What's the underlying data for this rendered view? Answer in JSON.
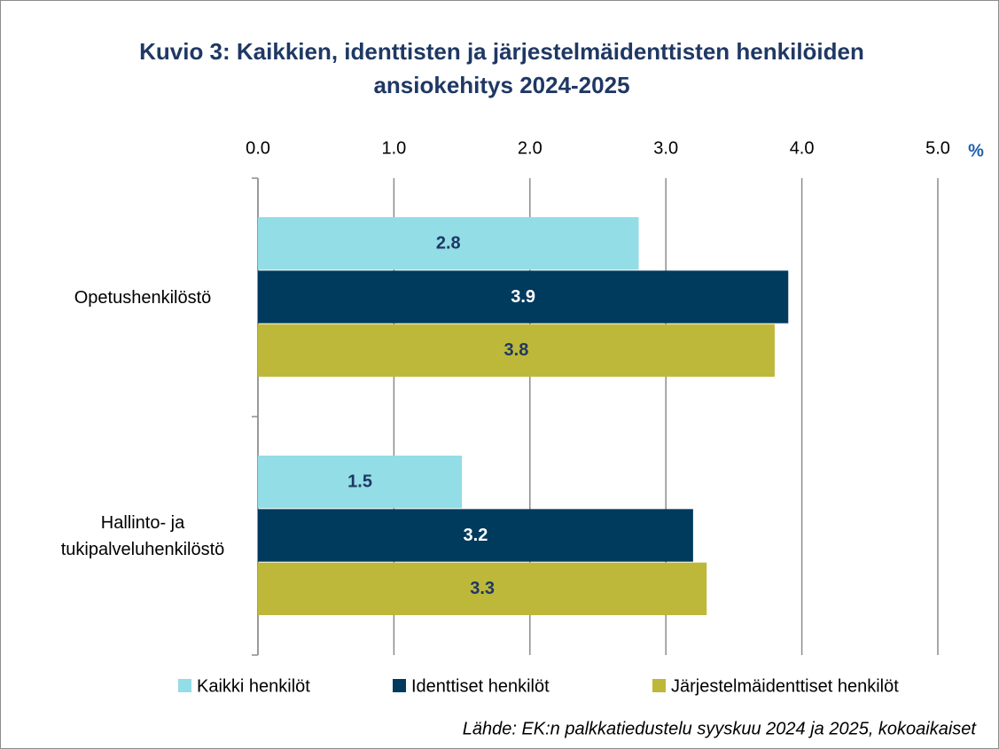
{
  "chart_data": {
    "type": "barh",
    "title": "Kuvio 3: Kaikkien, identtisten ja järjestelmäidenttisten henkilöiden ansiokehitys 2024-2025",
    "x_unit": "%",
    "categories": [
      "Opetushenkilöstö",
      "Hallinto- ja tukipalveluhenkilöstö"
    ],
    "series": [
      {
        "name": "Kaikki henkilöt",
        "color": "#93dde6",
        "label_color": "#1f3864",
        "values": [
          2.8,
          1.5
        ]
      },
      {
        "name": "Identtiset henkilöt",
        "color": "#003a5d",
        "label_color": "#ffffff",
        "values": [
          3.9,
          3.2
        ]
      },
      {
        "name": "Järjestelmäidenttiset henkilöt",
        "color": "#bdb83a",
        "label_color": "#1f3864",
        "values": [
          3.8,
          3.3
        ]
      }
    ],
    "xlim": [
      0,
      5
    ],
    "xticks": [
      {
        "value": 0,
        "label": "0.0"
      },
      {
        "value": 1,
        "label": "1.0"
      },
      {
        "value": 2,
        "label": "2.0"
      },
      {
        "value": 3,
        "label": "3.0"
      },
      {
        "value": 4,
        "label": "4.0"
      },
      {
        "value": 5,
        "label": "5.0"
      }
    ],
    "grid": true,
    "legend": "bottom",
    "source": "Lähde: EK:n palkkatiedustelu syyskuu 2024 ja 2025, kokoaikaiset"
  }
}
